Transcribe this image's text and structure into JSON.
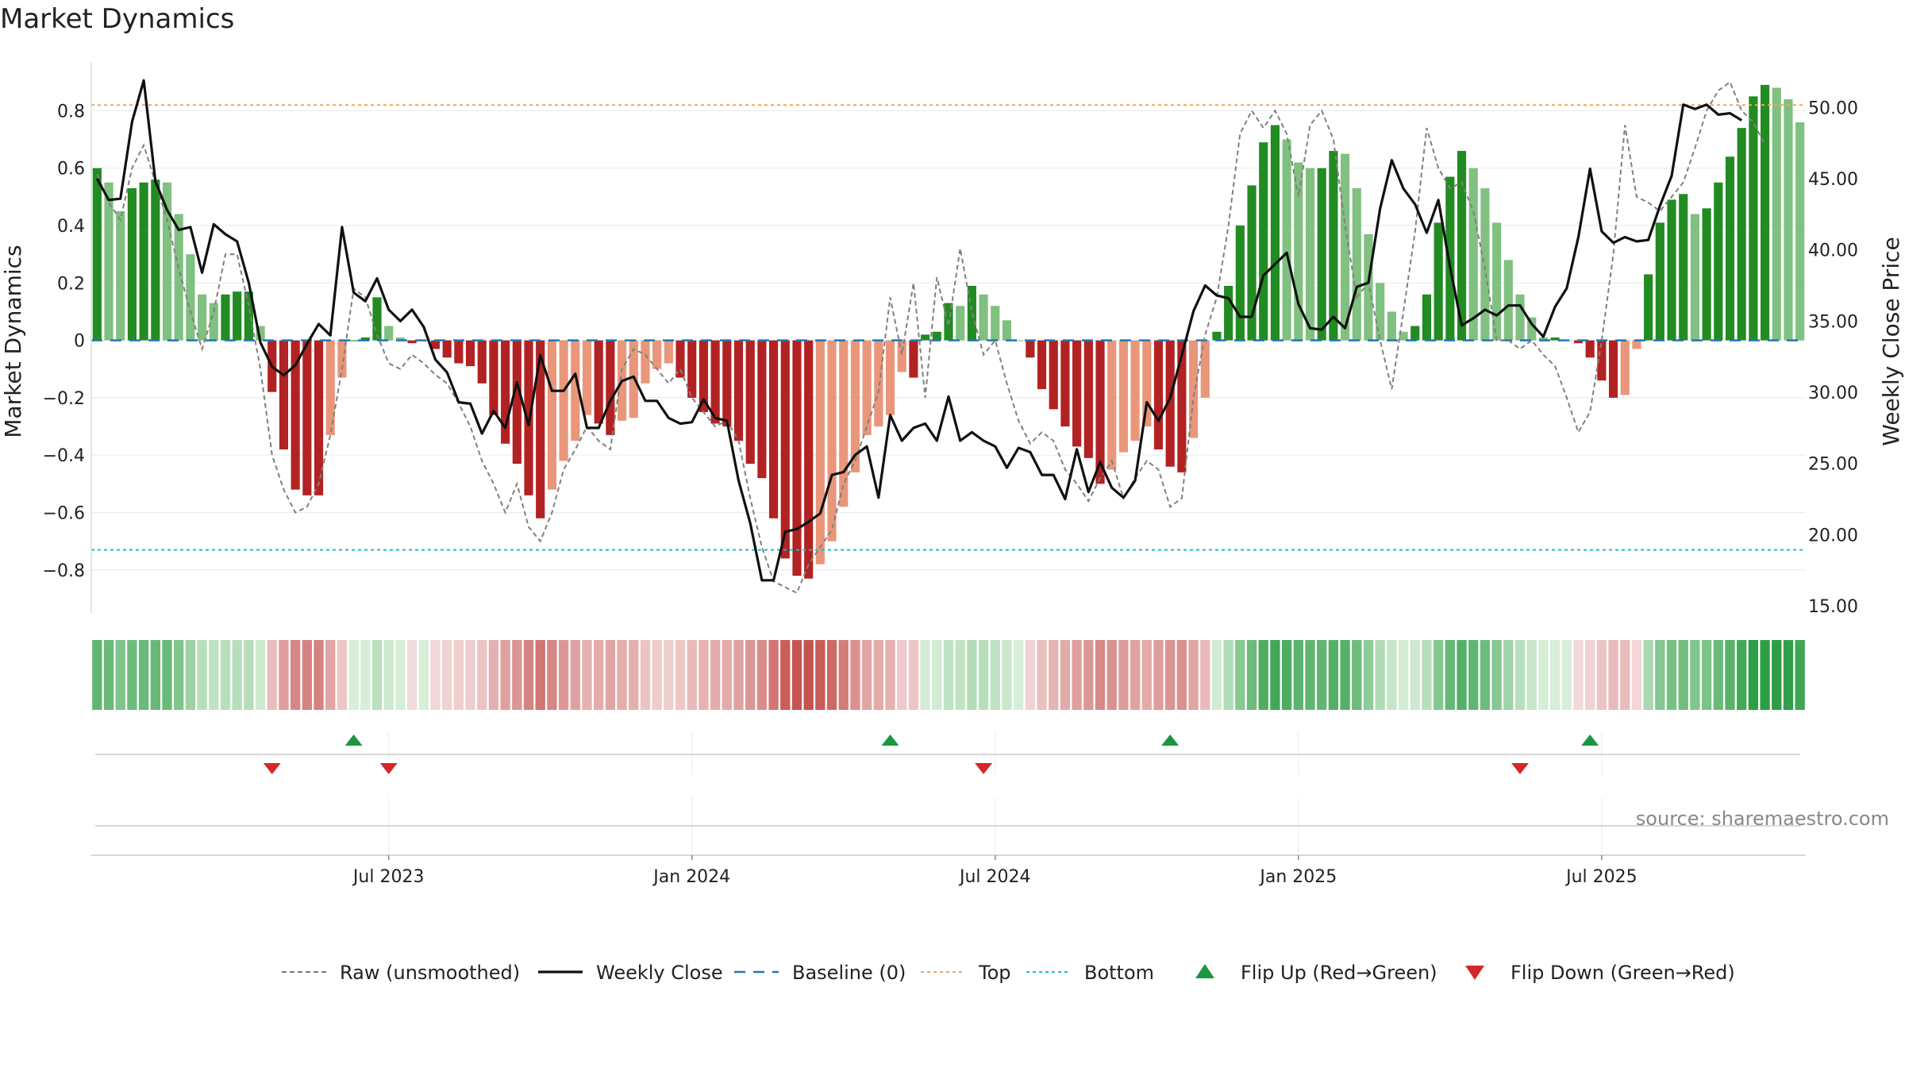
{
  "title": "Market Dynamics",
  "source": "source: sharemaestro.com",
  "colors": {
    "green_strong": "#228b22",
    "green_light": "#80c080",
    "red_strong": "#b22222",
    "red_light": "#e9967a",
    "top_line": "#f4a460",
    "bottom_line": "#17becf",
    "baseline": "#1f77b4",
    "raw_line": "#808080",
    "close_line": "#111111",
    "flip_up": "#1a9641",
    "flip_down": "#d62728"
  },
  "chart_data": {
    "type": "bar",
    "ylabel": "Market Dynamics",
    "y2label": "Weekly Close Price",
    "ylim": [
      -0.95,
      0.97
    ],
    "y2lim": [
      14.5,
      53.2
    ],
    "yticks": [
      {
        "v": 0.8,
        "label": "0.8"
      },
      {
        "v": 0.6,
        "label": "0.6"
      },
      {
        "v": 0.4,
        "label": "0.4"
      },
      {
        "v": 0.2,
        "label": "0.2"
      },
      {
        "v": 0,
        "label": "0"
      },
      {
        "v": -0.2,
        "label": "−0.2"
      },
      {
        "v": -0.4,
        "label": "−0.4"
      },
      {
        "v": -0.6,
        "label": "−0.6"
      },
      {
        "v": -0.8,
        "label": "−0.8"
      }
    ],
    "y2ticks": [
      {
        "v": 50,
        "label": "50.00"
      },
      {
        "v": 45,
        "label": "45.00"
      },
      {
        "v": 40,
        "label": "40.00"
      },
      {
        "v": 35,
        "label": "35.00"
      },
      {
        "v": 30,
        "label": "30.00"
      },
      {
        "v": 25,
        "label": "25.00"
      },
      {
        "v": 20,
        "label": "20.00"
      },
      {
        "v": 15,
        "label": "15.00"
      }
    ],
    "xticks": [
      {
        "week": 25,
        "label": "Jul 2023"
      },
      {
        "week": 51,
        "label": "Jan 2024"
      },
      {
        "week": 77,
        "label": "Jul 2024"
      },
      {
        "week": 103,
        "label": "Jan 2025"
      },
      {
        "week": 129,
        "label": "Jul 2025"
      }
    ],
    "top": 0.82,
    "bottom": -0.73,
    "baseline": 0,
    "dynamics": [
      0.6,
      0.55,
      0.45,
      0.53,
      0.55,
      0.56,
      0.55,
      0.44,
      0.3,
      0.16,
      0.13,
      0.16,
      0.17,
      0.17,
      0.05,
      -0.18,
      -0.38,
      -0.52,
      -0.54,
      -0.54,
      -0.33,
      -0.13,
      0,
      0.01,
      0.15,
      0.05,
      0.01,
      -0.01,
      0,
      -0.03,
      -0.06,
      -0.08,
      -0.09,
      -0.15,
      -0.26,
      -0.36,
      -0.43,
      -0.54,
      -0.62,
      -0.52,
      -0.42,
      -0.35,
      -0.26,
      -0.29,
      -0.33,
      -0.28,
      -0.27,
      -0.15,
      -0.1,
      -0.08,
      -0.13,
      -0.2,
      -0.25,
      -0.29,
      -0.3,
      -0.35,
      -0.43,
      -0.48,
      -0.62,
      -0.76,
      -0.82,
      -0.83,
      -0.78,
      -0.7,
      -0.58,
      -0.46,
      -0.33,
      -0.3,
      -0.26,
      -0.11,
      -0.13,
      0.02,
      0.03,
      0.13,
      0.12,
      0.19,
      0.16,
      0.12,
      0.07,
      0,
      -0.06,
      -0.17,
      -0.24,
      -0.3,
      -0.37,
      -0.41,
      -0.5,
      -0.45,
      -0.39,
      -0.35,
      -0.3,
      -0.38,
      -0.44,
      -0.46,
      -0.34,
      -0.2,
      0.03,
      0.19,
      0.4,
      0.54,
      0.69,
      0.75,
      0.7,
      0.62,
      0.6,
      0.6,
      0.66,
      0.65,
      0.53,
      0.37,
      0.2,
      0.1,
      0.03,
      0.05,
      0.16,
      0.41,
      0.57,
      0.66,
      0.6,
      0.53,
      0.41,
      0.28,
      0.16,
      0.08,
      0.01,
      0.01,
      0,
      -0.01,
      -0.06,
      -0.14,
      -0.2,
      -0.19,
      -0.03,
      0.23,
      0.41,
      0.49,
      0.51,
      0.44,
      0.46,
      0.55,
      0.64,
      0.74,
      0.85,
      0.89,
      0.88,
      0.84,
      0.76
    ],
    "raw": [
      0.58,
      0.48,
      0.42,
      0.6,
      0.68,
      0.55,
      0.42,
      0.25,
      0.1,
      -0.03,
      0.1,
      0.3,
      0.3,
      0.12,
      -0.1,
      -0.4,
      -0.52,
      -0.6,
      -0.58,
      -0.5,
      -0.33,
      -0.1,
      0.18,
      0.15,
      0.02,
      -0.08,
      -0.1,
      -0.05,
      -0.08,
      -0.12,
      -0.15,
      -0.22,
      -0.3,
      -0.42,
      -0.5,
      -0.6,
      -0.5,
      -0.65,
      -0.7,
      -0.6,
      -0.45,
      -0.38,
      -0.3,
      -0.35,
      -0.38,
      -0.1,
      -0.03,
      -0.05,
      -0.1,
      -0.15,
      -0.1,
      -0.2,
      -0.25,
      -0.3,
      -0.28,
      -0.35,
      -0.55,
      -0.72,
      -0.84,
      -0.86,
      -0.88,
      -0.78,
      -0.72,
      -0.66,
      -0.5,
      -0.42,
      -0.3,
      -0.18,
      0.15,
      -0.05,
      0.2,
      -0.2,
      0.22,
      0.05,
      0.32,
      0.1,
      -0.05,
      0,
      -0.15,
      -0.28,
      -0.36,
      -0.32,
      -0.35,
      -0.45,
      -0.5,
      -0.56,
      -0.48,
      -0.42,
      -0.55,
      -0.48,
      -0.42,
      -0.45,
      -0.58,
      -0.55,
      -0.2,
      0.02,
      0.15,
      0.4,
      0.72,
      0.8,
      0.74,
      0.8,
      0.72,
      0.5,
      0.75,
      0.8,
      0.7,
      0.4,
      0.15,
      0.2,
      0.0,
      -0.17,
      0.1,
      0.38,
      0.74,
      0.6,
      0.53,
      0.55,
      0.45,
      0.25,
      0.0,
      0.0,
      -0.03,
      0.0,
      -0.05,
      -0.09,
      -0.2,
      -0.32,
      -0.25,
      0.0,
      0.3,
      0.75,
      0.5,
      0.48,
      0.45,
      0.5,
      0.55,
      0.67,
      0.8,
      0.87,
      0.9,
      0.8,
      0.76,
      0.68
    ],
    "close": [
      45,
      43.5,
      43.6,
      49,
      51.9,
      44.8,
      42.8,
      41.4,
      41.6,
      38.4,
      41.8,
      41.1,
      40.6,
      37.7,
      33.5,
      31.8,
      31.2,
      31.9,
      33.4,
      34.8,
      34,
      41.6,
      37,
      36.4,
      38,
      35.8,
      35,
      35.8,
      34.6,
      32.3,
      31.4,
      29.3,
      29.2,
      27.1,
      28.7,
      27.5,
      30.7,
      27.7,
      32.6,
      30.1,
      30.1,
      31.3,
      27.5,
      27.5,
      29.4,
      30.8,
      31.1,
      29.4,
      29.4,
      28.2,
      27.8,
      27.9,
      29.5,
      28.2,
      28,
      23.8,
      20.8,
      16.8,
      16.8,
      20.2,
      20.4,
      20.9,
      21.5,
      24.2,
      24.4,
      25.6,
      26.2,
      22.6,
      28.4,
      26.6,
      27.5,
      27.8,
      26.6,
      29.7,
      26.6,
      27.2,
      26.6,
      26.2,
      24.7,
      26.1,
      25.8,
      24.2,
      24.2,
      22.5,
      26,
      23,
      25.1,
      23.3,
      22.6,
      23.8,
      29.3,
      28,
      29.6,
      32.6,
      35.7,
      37.5,
      36.8,
      36.6,
      35.3,
      35.3,
      38.2,
      39,
      39.8,
      36.2,
      34.5,
      34.4,
      35.3,
      34.5,
      37.4,
      37.7,
      42.9,
      46.3,
      44.3,
      43.2,
      41.2,
      43.5,
      38.8,
      34.7,
      35.2,
      35.8,
      35.4,
      36.1,
      36.1,
      34.8,
      33.9,
      36,
      37.3,
      40.9,
      45.7,
      41.3,
      40.5,
      40.9,
      40.6,
      40.7,
      43.1,
      45.2,
      50.2,
      49.9,
      50.2,
      49.5,
      49.6,
      49.1
    ],
    "flip_up_weeks": [
      22,
      68,
      92,
      128
    ],
    "flip_down_weeks": [
      15,
      25,
      76,
      122
    ]
  },
  "legend": {
    "items": [
      {
        "label": "Raw (unsmoothed)",
        "kind": "line-dash-gray"
      },
      {
        "label": "Weekly Close",
        "kind": "line-solid-black"
      },
      {
        "label": "Baseline (0)",
        "kind": "line-dash-blue"
      },
      {
        "label": "Top",
        "kind": "line-dot-orange"
      },
      {
        "label": "Bottom",
        "kind": "line-dot-cyan"
      },
      {
        "label": "Flip Up (Red→Green)",
        "kind": "triangle-up-green"
      },
      {
        "label": "Flip Down (Green→Red)",
        "kind": "triangle-down-red"
      }
    ]
  }
}
